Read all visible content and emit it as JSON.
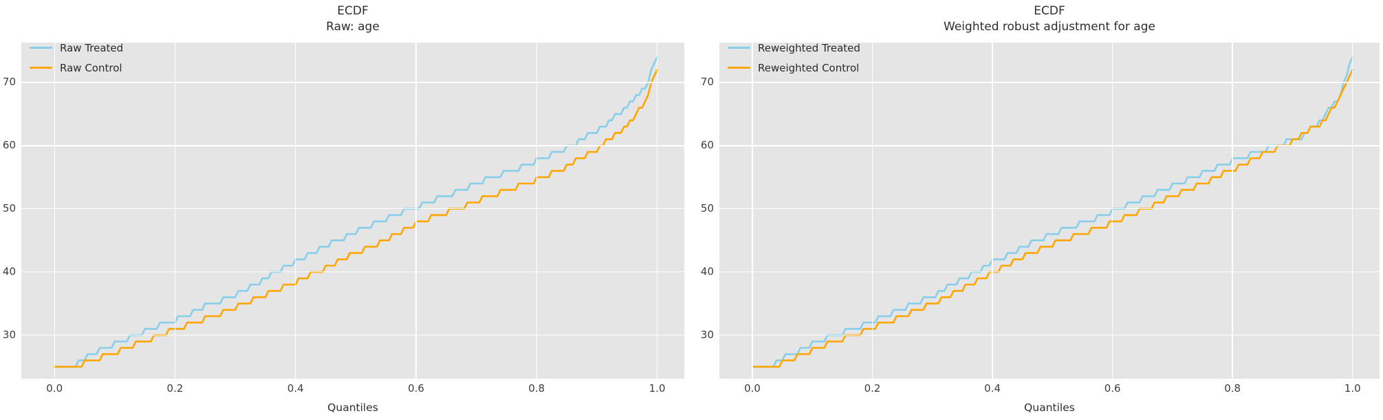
{
  "figure": {
    "background": "#ffffff"
  },
  "style": {
    "panel_background": "#E5E5E5",
    "grid_color": "#ffffff",
    "treated_color": "#87CEEB",
    "control_color": "#FFA500",
    "text_color": "#2e2e2e",
    "tick_color": "#3d3d3d"
  },
  "chart_data": [
    {
      "type": "line",
      "variant": "ecdf-quantile-staircase",
      "title": "ECDF",
      "subtitle": "Raw: age",
      "xlabel": "Quantiles",
      "grid": true,
      "legend_position": "upper left",
      "xlim": [
        -0.055,
        1.045
      ],
      "ylim": [
        23.1,
        76.3
      ],
      "x_ticks": [
        {
          "value": 0.0,
          "label": "0.0"
        },
        {
          "value": 0.2,
          "label": "0.2"
        },
        {
          "value": 0.4,
          "label": "0.4"
        },
        {
          "value": 0.6,
          "label": "0.6"
        },
        {
          "value": 0.8,
          "label": "0.8"
        },
        {
          "value": 1.0,
          "label": "1.0"
        }
      ],
      "y_ticks": [
        {
          "value": 30,
          "label": "30"
        },
        {
          "value": 40,
          "label": "40"
        },
        {
          "value": 50,
          "label": "50"
        },
        {
          "value": 60,
          "label": "60"
        },
        {
          "value": 70,
          "label": "70"
        }
      ],
      "value_step": 1,
      "series": [
        {
          "name": "Raw Treated",
          "color": "#87CEEB",
          "anchors": [
            [
              0,
              24.6
            ],
            [
              0.03,
              25.1
            ],
            [
              0.05,
              26.4
            ],
            [
              0.1,
              28.7
            ],
            [
              0.15,
              30.6
            ],
            [
              0.2,
              32.4
            ],
            [
              0.25,
              34.5
            ],
            [
              0.3,
              36.4
            ],
            [
              0.35,
              39.0
            ],
            [
              0.4,
              41.6
            ],
            [
              0.45,
              44.2
            ],
            [
              0.5,
              46.3
            ],
            [
              0.55,
              48.4
            ],
            [
              0.6,
              50.3
            ],
            [
              0.65,
              52.1
            ],
            [
              0.7,
              54.0
            ],
            [
              0.75,
              55.7
            ],
            [
              0.8,
              57.5
            ],
            [
              0.85,
              59.7
            ],
            [
              0.9,
              62.3
            ],
            [
              0.95,
              66.0
            ],
            [
              0.98,
              69.0
            ],
            [
              1.0,
              74.2
            ]
          ]
        },
        {
          "name": "Raw Control",
          "color": "#FFA500",
          "anchors": [
            [
              0,
              24.6
            ],
            [
              0.04,
              25.2
            ],
            [
              0.05,
              25.6
            ],
            [
              0.1,
              27.3
            ],
            [
              0.15,
              29.1
            ],
            [
              0.2,
              30.9
            ],
            [
              0.25,
              32.5
            ],
            [
              0.3,
              34.3
            ],
            [
              0.35,
              36.3
            ],
            [
              0.4,
              38.4
            ],
            [
              0.45,
              40.7
            ],
            [
              0.5,
              43.0
            ],
            [
              0.55,
              45.1
            ],
            [
              0.6,
              47.6
            ],
            [
              0.65,
              49.4
            ],
            [
              0.7,
              51.2
            ],
            [
              0.75,
              52.9
            ],
            [
              0.8,
              54.5
            ],
            [
              0.85,
              56.7
            ],
            [
              0.9,
              59.4
            ],
            [
              0.95,
              63.2
            ],
            [
              0.98,
              66.8
            ],
            [
              1.0,
              72.2
            ]
          ]
        }
      ]
    },
    {
      "type": "line",
      "variant": "ecdf-quantile-staircase",
      "title": "ECDF",
      "subtitle": "Weighted robust adjustment for age",
      "xlabel": "Quantiles",
      "grid": true,
      "legend_position": "upper left",
      "xlim": [
        -0.055,
        1.045
      ],
      "ylim": [
        23.1,
        76.3
      ],
      "x_ticks": [
        {
          "value": 0.0,
          "label": "0.0"
        },
        {
          "value": 0.2,
          "label": "0.2"
        },
        {
          "value": 0.4,
          "label": "0.4"
        },
        {
          "value": 0.6,
          "label": "0.6"
        },
        {
          "value": 0.8,
          "label": "0.8"
        },
        {
          "value": 1.0,
          "label": "1.0"
        }
      ],
      "y_ticks": [
        {
          "value": 30,
          "label": "30"
        },
        {
          "value": 40,
          "label": "40"
        },
        {
          "value": 50,
          "label": "50"
        },
        {
          "value": 60,
          "label": "60"
        },
        {
          "value": 70,
          "label": "70"
        }
      ],
      "value_step": 1,
      "series": [
        {
          "name": "Reweighted Treated",
          "color": "#87CEEB",
          "anchors": [
            [
              0,
              24.6
            ],
            [
              0.03,
              25.1
            ],
            [
              0.05,
              26.3
            ],
            [
              0.1,
              28.6
            ],
            [
              0.15,
              30.4
            ],
            [
              0.2,
              32.2
            ],
            [
              0.25,
              34.2
            ],
            [
              0.3,
              36.2
            ],
            [
              0.35,
              38.8
            ],
            [
              0.4,
              41.5
            ],
            [
              0.45,
              43.9
            ],
            [
              0.5,
              46.0
            ],
            [
              0.55,
              47.8
            ],
            [
              0.6,
              49.5
            ],
            [
              0.65,
              51.5
            ],
            [
              0.7,
              53.5
            ],
            [
              0.75,
              55.5
            ],
            [
              0.8,
              57.5
            ],
            [
              0.85,
              59.3
            ],
            [
              0.9,
              61.0
            ],
            [
              0.92,
              61.6
            ],
            [
              0.95,
              64.3
            ],
            [
              0.98,
              68.0
            ],
            [
              1.0,
              74.1
            ]
          ]
        },
        {
          "name": "Reweighted Control",
          "color": "#FFA500",
          "anchors": [
            [
              0,
              24.6
            ],
            [
              0.04,
              25.2
            ],
            [
              0.06,
              25.9
            ],
            [
              0.1,
              27.6
            ],
            [
              0.15,
              29.4
            ],
            [
              0.2,
              31.2
            ],
            [
              0.25,
              33.0
            ],
            [
              0.3,
              34.9
            ],
            [
              0.35,
              37.3
            ],
            [
              0.4,
              40.0
            ],
            [
              0.45,
              42.3
            ],
            [
              0.5,
              44.4
            ],
            [
              0.55,
              46.1
            ],
            [
              0.6,
              47.7
            ],
            [
              0.65,
              49.8
            ],
            [
              0.7,
              52.0
            ],
            [
              0.75,
              54.0
            ],
            [
              0.8,
              56.2
            ],
            [
              0.85,
              58.6
            ],
            [
              0.9,
              60.6
            ],
            [
              0.92,
              62.0
            ],
            [
              0.95,
              63.6
            ],
            [
              0.98,
              67.5
            ],
            [
              1.0,
              72.2
            ]
          ]
        }
      ]
    }
  ]
}
